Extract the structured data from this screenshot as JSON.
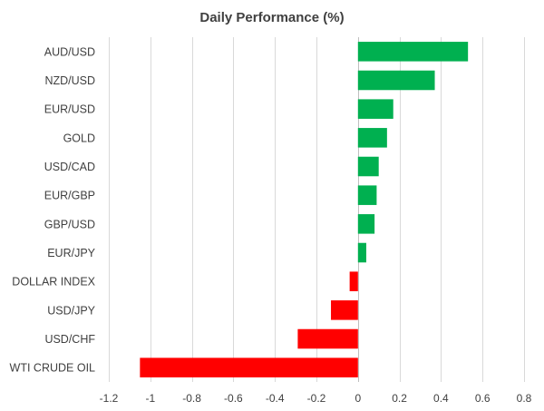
{
  "chart_data": {
    "type": "bar",
    "orientation": "horizontal",
    "title": "Daily Performance (%)",
    "categories": [
      "AUD/USD",
      "NZD/USD",
      "EUR/USD",
      "GOLD",
      "USD/CAD",
      "EUR/GBP",
      "GBP/USD",
      "EUR/JPY",
      "DOLLAR INDEX",
      "USD/JPY",
      "USD/CHF",
      "WTI CRUDE OIL"
    ],
    "values": [
      0.53,
      0.37,
      0.17,
      0.14,
      0.1,
      0.09,
      0.08,
      0.04,
      -0.04,
      -0.13,
      -0.29,
      -1.05
    ],
    "xlim": [
      -1.2,
      0.8
    ],
    "xticks": [
      -1.2,
      -1.0,
      -0.8,
      -0.6,
      -0.4,
      -0.2,
      0,
      0.2,
      0.4,
      0.6,
      0.8
    ],
    "xtick_labels": [
      "-1.2",
      "-1",
      "-0.8",
      "-0.6",
      "-0.4",
      "-0.2",
      "0",
      "0.2",
      "0.4",
      "0.6",
      "0.8"
    ],
    "grid": true,
    "legend": "none",
    "colors": {
      "positive": "#00b050",
      "negative": "#ff0000",
      "grid": "#d9d9d9",
      "text": "#404040"
    }
  }
}
